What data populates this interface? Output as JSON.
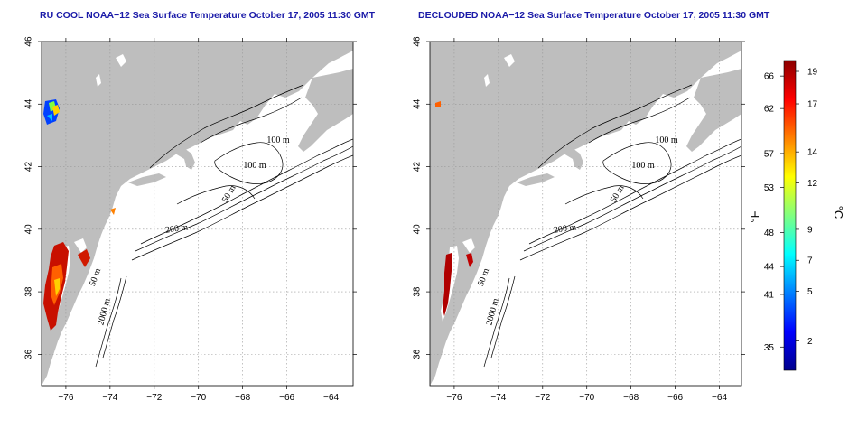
{
  "panels": [
    {
      "title": "RU COOL NOAA−12 Sea Surface Temperature October 17, 2005 11:30 GMT"
    },
    {
      "title": "DECLOUDED NOAA−12 Sea Surface Temperature October 17, 2005 11:30 GMT"
    }
  ],
  "map": {
    "lon_ticks": [
      "−76",
      "−74",
      "−72",
      "−70",
      "−68",
      "−66",
      "−64"
    ],
    "lon_values": [
      -76,
      -74,
      -72,
      -70,
      -68,
      -66,
      -64
    ],
    "lat_ticks": [
      "36",
      "38",
      "40",
      "42",
      "44",
      "46"
    ],
    "lat_values": [
      36,
      38,
      40,
      42,
      44,
      46
    ],
    "lon_range": [
      -77.1,
      -63.0
    ],
    "lat_range": [
      35.0,
      46.0
    ],
    "isobath_labels": [
      "100 m",
      "100 m",
      "50 m",
      "200 m",
      "50 m",
      "2000 m"
    ],
    "land_color": "#bebebe",
    "grid": "dotted"
  },
  "colorbar": {
    "fahrenheit_ticks": [
      "66",
      "62",
      "57",
      "53",
      "48",
      "44",
      "41",
      "35"
    ],
    "celsius_ticks": [
      "19",
      "17",
      "14",
      "12",
      "9",
      "7",
      "5",
      "2"
    ],
    "f_unit": "°F",
    "c_unit": "°C",
    "colors": [
      "#00008b",
      "#0000ff",
      "#0080ff",
      "#00ffff",
      "#80ff80",
      "#ffff00",
      "#ff8000",
      "#ff0000",
      "#8b0000"
    ]
  }
}
